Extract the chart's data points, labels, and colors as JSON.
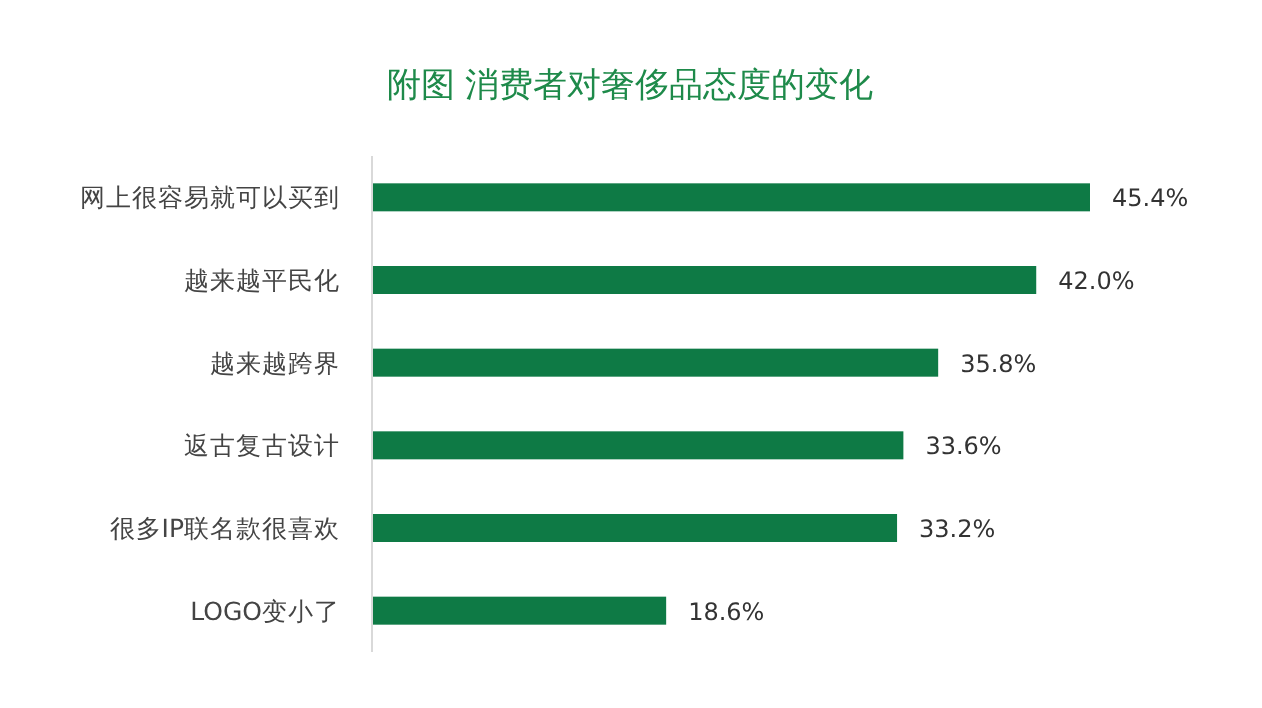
{
  "chart_data": {
    "type": "bar",
    "orientation": "horizontal",
    "title": "附图 消费者对奢侈品态度的变化",
    "categories": [
      "网上很容易就可以买到",
      "越来越平民化",
      "越来越跨界",
      "返古复古设计",
      "很多IP联名款很喜欢",
      "LOGO变小了"
    ],
    "values": [
      45.4,
      42.0,
      35.8,
      33.6,
      33.2,
      18.6
    ],
    "value_labels": [
      "45.4%",
      "42.0%",
      "35.8%",
      "33.6%",
      "33.2%",
      "18.6%"
    ],
    "color": "#0e7a45"
  }
}
